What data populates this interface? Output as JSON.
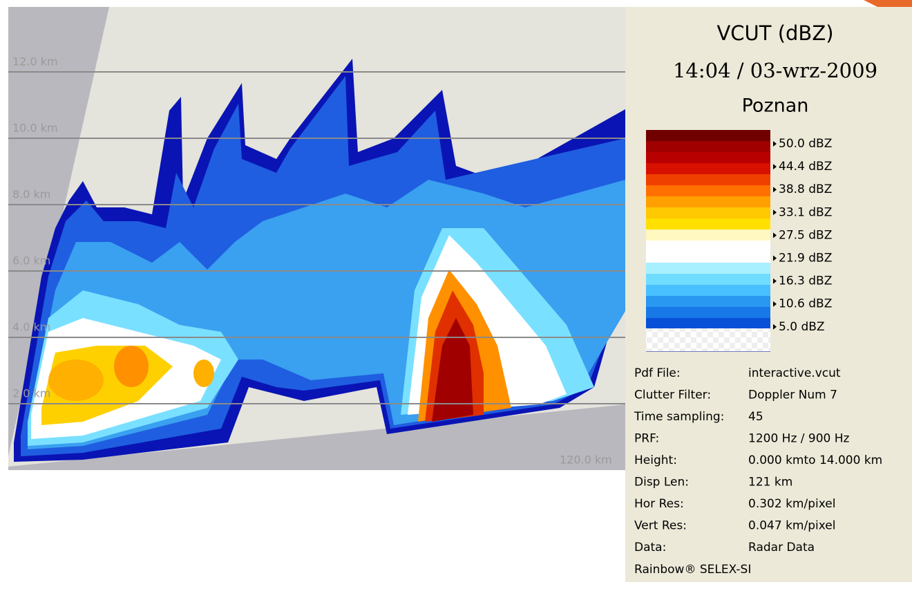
{
  "plot": {
    "height_labels": [
      "12.0 km",
      "10.0 km",
      "8.0 km",
      "6.0 km",
      "4.0 km",
      "2.0 km"
    ],
    "range_label": "120.0 km"
  },
  "panel": {
    "title": "VCUT (dBZ)",
    "datetime": "14:04 / 03-wrz-2009",
    "site": "Poznan",
    "legend": [
      "50.0 dBZ",
      "44.4 dBZ",
      "38.8 dBZ",
      "33.1 dBZ",
      "27.5 dBZ",
      "21.9 dBZ",
      "16.3 dBZ",
      "10.6 dBZ",
      "5.0 dBZ"
    ],
    "info": [
      [
        "Pdf File:",
        "interactive.vcut"
      ],
      [
        "Clutter Filter:",
        "Doppler Num 7"
      ],
      [
        "Time sampling:",
        "45"
      ],
      [
        "PRF:",
        "1200 Hz / 900 Hz"
      ],
      [
        "Height:",
        "0.000 kmto 14.000 km"
      ],
      [
        "Disp Len:",
        "121 km"
      ],
      [
        "Hor Res:",
        "0.302 km/pixel"
      ],
      [
        "Vert Res:",
        "0.047 km/pixel"
      ],
      [
        "Data:",
        "Radar Data"
      ]
    ],
    "footer": "Rainbow® SELEX-SI"
  }
}
